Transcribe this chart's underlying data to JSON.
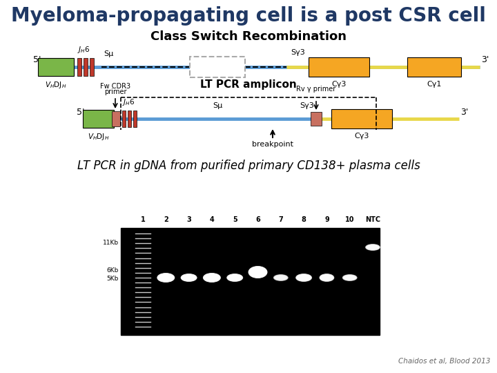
{
  "title": "Myeloma-propagating cell is a post CSR cell",
  "subtitle": "Class Switch Recombination",
  "lt_pcr_label": "LT PCR amplicon",
  "bottom_label": "LT PCR in gDNA from purified primary CD138+ plasma cells",
  "citation": "Chaidos et al, Blood 2013",
  "bg_color": "#ffffff",
  "title_color": "#1f3864",
  "subtitle_color": "#000000",
  "green_color": "#7ab648",
  "orange_color": "#f5a623",
  "red_color": "#c0392b",
  "salmon_color": "#c87060",
  "blue_color": "#5b9bd5",
  "yellow_color": "#e8d84a",
  "gray_color": "#aaaaaa"
}
